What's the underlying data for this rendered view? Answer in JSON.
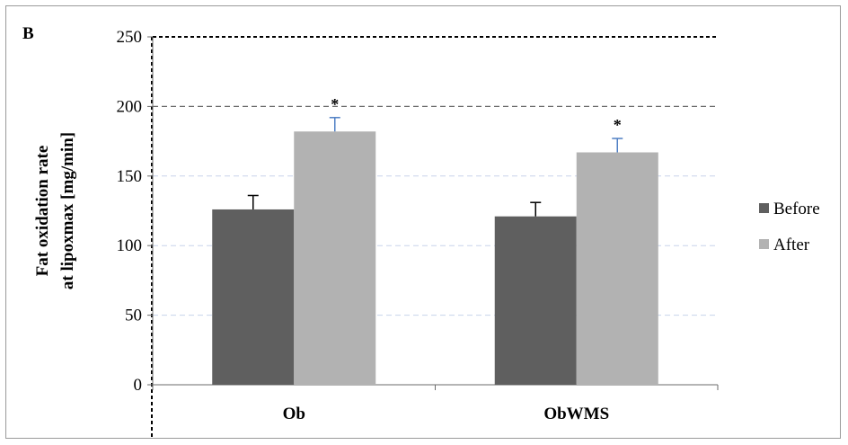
{
  "chart_data": {
    "type": "bar",
    "panel_label": "B",
    "categories": [
      "Ob",
      "ObWMS"
    ],
    "series": [
      {
        "name": "Before",
        "color": "#5f5f5f",
        "values": [
          126,
          121
        ],
        "errors": [
          10,
          10
        ],
        "error_color": "#000000"
      },
      {
        "name": "After",
        "color": "#b2b2b2",
        "values": [
          182,
          167
        ],
        "errors": [
          10,
          10
        ],
        "error_color": "#4f7fc4"
      }
    ],
    "annotations": [
      {
        "category": "Ob",
        "series": "After",
        "text": "*"
      },
      {
        "category": "ObWMS",
        "series": "After",
        "text": "*"
      }
    ],
    "ylabel_lines": [
      "Fat oxidation rate",
      "at lipoxmax [mg/min]"
    ],
    "xlabel": "",
    "ylim": [
      0,
      250
    ],
    "yticks": [
      0,
      50,
      100,
      150,
      200,
      250
    ],
    "grid": true,
    "legend_position": "right",
    "reference_line": 200
  }
}
